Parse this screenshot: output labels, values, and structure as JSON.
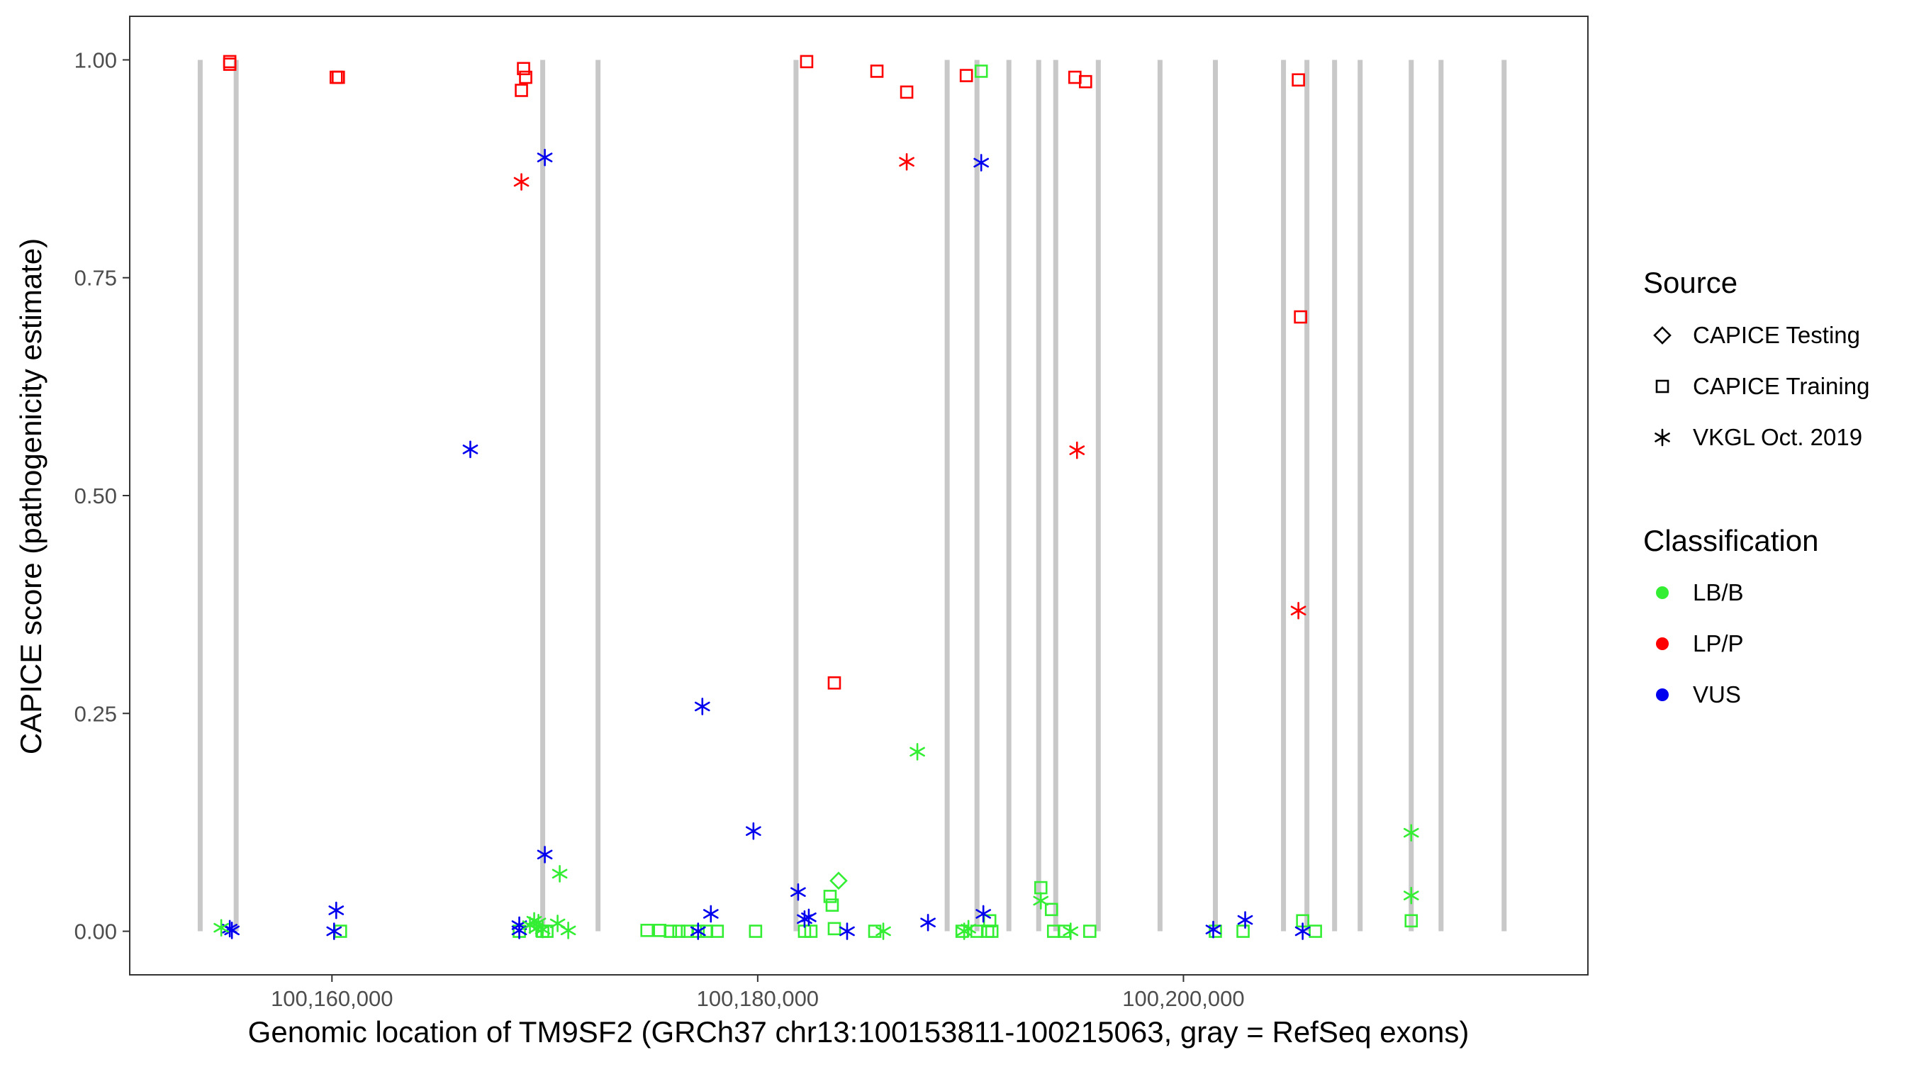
{
  "colors": {
    "LB/B": "#33ee33",
    "LP/P": "#ff0000",
    "VUS": "#0000ee",
    "exon": "#c8c8c8",
    "axis": "#333333",
    "tick_label": "#4d4d4d"
  },
  "chart_data": {
    "type": "scatter",
    "title": "",
    "xlabel": "Genomic location of TM9SF2 (GRCh37 chr13:100153811-100215063, gray = RefSeq exons)",
    "ylabel": "CAPICE score (pathogenicity estimate)",
    "xlim": [
      150500,
      219000
    ],
    "ylim": [
      -0.05,
      1.05
    ],
    "x_ticks": [
      160000,
      180000,
      200000
    ],
    "x_tick_labels": [
      "100,160,000",
      "100,180,000",
      "100,200,000"
    ],
    "y_ticks": [
      0,
      0.25,
      0.5,
      0.75,
      1.0
    ],
    "y_tick_labels": [
      "0.00",
      "0.25",
      "0.50",
      "0.75",
      "1.00"
    ],
    "x_offset": 100000000,
    "grid": false,
    "legend_position": "right",
    "exons": [
      153811,
      155500,
      169900,
      172500,
      181800,
      188900,
      190300,
      191800,
      193200,
      194000,
      196000,
      198900,
      201500,
      204700,
      205800,
      207100,
      208300,
      210700,
      212100,
      215063
    ],
    "legend": {
      "source_title": "Source",
      "sources": [
        {
          "label": "CAPICE Testing",
          "shape": "diamond"
        },
        {
          "label": "CAPICE Training",
          "shape": "square"
        },
        {
          "label": "VKGL Oct. 2019",
          "shape": "star"
        }
      ],
      "class_title": "Classification",
      "classes": [
        {
          "label": "LB/B",
          "color_key": "LB/B"
        },
        {
          "label": "LP/P",
          "color_key": "LP/P"
        },
        {
          "label": "VUS",
          "color_key": "VUS"
        }
      ]
    },
    "series": [
      {
        "source": "CAPICE Testing",
        "classification": "LB/B",
        "shape": "diamond",
        "points": [
          [
            183800,
            0.058
          ]
        ]
      },
      {
        "source": "CAPICE Training",
        "classification": "LP/P",
        "shape": "square",
        "points": [
          [
            155200,
            0.998
          ],
          [
            155200,
            0.995
          ],
          [
            160200,
            0.98
          ],
          [
            160300,
            0.98
          ],
          [
            169000,
            0.99
          ],
          [
            169100,
            0.98
          ],
          [
            168900,
            0.965
          ],
          [
            182300,
            0.998
          ],
          [
            185600,
            0.987
          ],
          [
            187000,
            0.963
          ],
          [
            189800,
            0.982
          ],
          [
            194900,
            0.98
          ],
          [
            195400,
            0.975
          ],
          [
            205400,
            0.977
          ],
          [
            205500,
            0.705
          ],
          [
            183600,
            0.285
          ]
        ]
      },
      {
        "source": "CAPICE Training",
        "classification": "LB/B",
        "shape": "square",
        "points": [
          [
            190500,
            0.987
          ],
          [
            190900,
            0.012
          ],
          [
            193300,
            0.05
          ],
          [
            193800,
            0.025
          ],
          [
            183400,
            0.04
          ],
          [
            183500,
            0.03
          ],
          [
            183600,
            0.003
          ],
          [
            205600,
            0.012
          ],
          [
            210700,
            0.012
          ],
          [
            174800,
            0.001
          ],
          [
            175400,
            0.001
          ],
          [
            175900,
            0.0
          ],
          [
            176300,
            0.0
          ],
          [
            176700,
            0.0
          ],
          [
            177200,
            0.0
          ],
          [
            177600,
            0.0
          ],
          [
            178100,
            0.0
          ],
          [
            179900,
            0.0
          ],
          [
            182200,
            0.0
          ],
          [
            182500,
            0.0
          ],
          [
            185500,
            0.0
          ],
          [
            189600,
            0.0
          ],
          [
            190300,
            0.0
          ],
          [
            190800,
            0.0
          ],
          [
            191000,
            0.0
          ],
          [
            193900,
            0.0
          ],
          [
            194400,
            0.0
          ],
          [
            195600,
            0.0
          ],
          [
            201500,
            0.0
          ],
          [
            202800,
            0.0
          ],
          [
            206200,
            0.0
          ],
          [
            169900,
            0.0
          ],
          [
            170100,
            0.0
          ],
          [
            160400,
            0.0
          ],
          [
            168800,
            0.0
          ]
        ]
      },
      {
        "source": "VKGL Oct. 2019",
        "classification": "LP/P",
        "shape": "star",
        "points": [
          [
            168900,
            0.86
          ],
          [
            187000,
            0.883
          ],
          [
            195000,
            0.552
          ],
          [
            205400,
            0.368
          ]
        ]
      },
      {
        "source": "VKGL Oct. 2019",
        "classification": "VUS",
        "shape": "star",
        "points": [
          [
            170000,
            0.888
          ],
          [
            190500,
            0.882
          ],
          [
            166500,
            0.553
          ],
          [
            177400,
            0.258
          ],
          [
            179800,
            0.115
          ],
          [
            170000,
            0.088
          ],
          [
            181900,
            0.045
          ],
          [
            160200,
            0.024
          ],
          [
            177800,
            0.02
          ],
          [
            190600,
            0.02
          ],
          [
            182400,
            0.016
          ],
          [
            182200,
            0.014
          ],
          [
            202900,
            0.013
          ],
          [
            188000,
            0.01
          ],
          [
            168800,
            0.007
          ],
          [
            155200,
            0.003
          ],
          [
            155300,
            0.001
          ],
          [
            168800,
            0.001
          ],
          [
            177200,
            0.0
          ],
          [
            184200,
            0.0
          ],
          [
            201400,
            0.002
          ],
          [
            205600,
            0.0
          ],
          [
            160100,
            0.0
          ]
        ]
      },
      {
        "source": "VKGL Oct. 2019",
        "classification": "LB/B",
        "shape": "star",
        "points": [
          [
            187500,
            0.206
          ],
          [
            210700,
            0.113
          ],
          [
            170700,
            0.066
          ],
          [
            210700,
            0.041
          ],
          [
            193300,
            0.035
          ],
          [
            169500,
            0.012
          ],
          [
            169700,
            0.01
          ],
          [
            170600,
            0.009
          ],
          [
            169300,
            0.007
          ],
          [
            154800,
            0.004
          ],
          [
            189900,
            0.003
          ],
          [
            169600,
            0.003
          ],
          [
            169900,
            0.002
          ],
          [
            171100,
            0.001
          ],
          [
            185900,
            0.0
          ],
          [
            189700,
            0.0
          ],
          [
            194700,
            0.0
          ]
        ]
      }
    ]
  }
}
